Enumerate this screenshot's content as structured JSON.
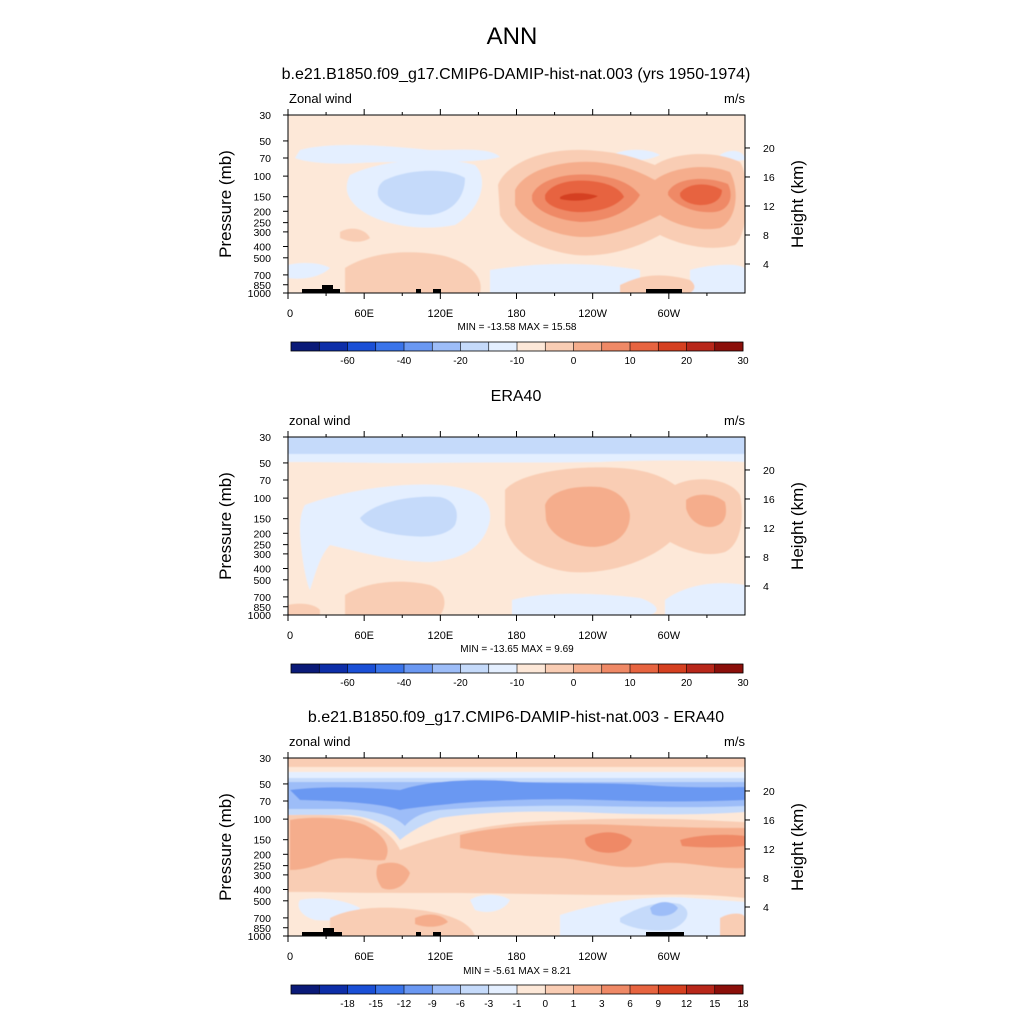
{
  "figure_title": "ANN",
  "colors": {
    "ramp_main": [
      "#0a1a78",
      "#0d2ea8",
      "#1a4fd6",
      "#3a74ea",
      "#6a98f2",
      "#9dbdf8",
      "#c5dafa",
      "#e4efff",
      "#fde8d8",
      "#f9cdb4",
      "#f5ad8c",
      "#ef8966",
      "#e76440",
      "#d54020",
      "#b8271a",
      "#8b0f0a"
    ],
    "land": "#000000"
  },
  "panels": [
    {
      "title": "b.e21.B1850.f09_g17.CMIP6-DAMIP-hist-nat.003 (yrs 1950-1974)",
      "left_label": "Zonal wind",
      "right_label": "m/s",
      "stats": "MIN = -13.58  MAX =  15.58",
      "colorbar_labels": [
        "-60",
        "-40",
        "-20",
        "-10",
        "0",
        "10",
        "20",
        "30"
      ]
    },
    {
      "title": "ERA40",
      "left_label": "zonal wind",
      "right_label": "m/s",
      "stats": "MIN = -13.65  MAX =   9.69",
      "colorbar_labels": [
        "-60",
        "-40",
        "-20",
        "-10",
        "0",
        "10",
        "20",
        "30"
      ]
    },
    {
      "title": "b.e21.B1850.f09_g17.CMIP6-DAMIP-hist-nat.003 - ERA40",
      "left_label": "zonal wind",
      "right_label": "m/s",
      "stats": "MIN =  -5.61  MAX =   8.21",
      "colorbar_labels": [
        "-18",
        "-15",
        "-12",
        "-9",
        "-6",
        "-3",
        "-1",
        "0",
        "1",
        "3",
        "6",
        "9",
        "12",
        "15",
        "18"
      ]
    }
  ],
  "chart_data": [
    {
      "type": "contour",
      "title": "b.e21.B1850.f09_g17.CMIP6-DAMIP-hist-nat.003 (yrs 1950-1974)",
      "variable": "Zonal wind",
      "units": "m/s",
      "xlabel": "",
      "ylabel": "Pressure (mb)",
      "ylabel_right": "Height (km)",
      "x_ticks": [
        "0",
        "60E",
        "120E",
        "180",
        "120W",
        "60W"
      ],
      "x_tick_lon": [
        0,
        60,
        120,
        180,
        240,
        300
      ],
      "xlim": [
        0,
        360
      ],
      "y_ticks": [
        30,
        50,
        70,
        100,
        150,
        200,
        250,
        300,
        400,
        500,
        700,
        850,
        1000
      ],
      "y_right_ticks": [
        4,
        8,
        12,
        16,
        20
      ],
      "ylim_mb": [
        1000,
        30
      ],
      "levels": [
        -70,
        -60,
        -50,
        -40,
        -30,
        -20,
        -15,
        -10,
        -5,
        0,
        5,
        10,
        15,
        20,
        25,
        30,
        35
      ],
      "min": -13.58,
      "max": 15.58,
      "features": [
        {
          "lon": 75,
          "p": 125,
          "value": -10,
          "label": "easterlies over Indian Ocean"
        },
        {
          "lon": 215,
          "p": 150,
          "value": 15,
          "label": "Pacific westerly maximum"
        },
        {
          "lon": 305,
          "p": 150,
          "value": 12,
          "label": "Atlantic westerly maximum"
        }
      ]
    },
    {
      "type": "contour",
      "title": "ERA40",
      "variable": "zonal wind",
      "units": "m/s",
      "xlabel": "",
      "ylabel": "Pressure (mb)",
      "ylabel_right": "Height (km)",
      "x_ticks": [
        "0",
        "60E",
        "120E",
        "180",
        "120W",
        "60W"
      ],
      "x_tick_lon": [
        0,
        60,
        120,
        180,
        240,
        300
      ],
      "xlim": [
        0,
        360
      ],
      "y_ticks": [
        30,
        50,
        70,
        100,
        150,
        200,
        250,
        300,
        400,
        500,
        700,
        850,
        1000
      ],
      "y_right_ticks": [
        4,
        8,
        12,
        16,
        20
      ],
      "ylim_mb": [
        1000,
        30
      ],
      "levels": [
        -70,
        -60,
        -50,
        -40,
        -30,
        -20,
        -15,
        -10,
        -5,
        0,
        5,
        10,
        15,
        20,
        25,
        30,
        35
      ],
      "min": -13.65,
      "max": 9.69,
      "features": [
        {
          "lon": 85,
          "p": 140,
          "value": -10,
          "label": "easterlies over Indian Ocean"
        },
        {
          "lon": 225,
          "p": 150,
          "value": 9,
          "label": "Pacific westerly maximum"
        },
        {
          "lon": 325,
          "p": 150,
          "value": 7,
          "label": "Atlantic westerly maximum"
        }
      ]
    },
    {
      "type": "contour",
      "title": "b.e21.B1850.f09_g17.CMIP6-DAMIP-hist-nat.003 - ERA40",
      "variable": "zonal wind",
      "units": "m/s",
      "xlabel": "",
      "ylabel": "Pressure (mb)",
      "ylabel_right": "Height (km)",
      "x_ticks": [
        "0",
        "60E",
        "120E",
        "180",
        "120W",
        "60W"
      ],
      "x_tick_lon": [
        0,
        60,
        120,
        180,
        240,
        300
      ],
      "xlim": [
        0,
        360
      ],
      "y_ticks": [
        30,
        50,
        70,
        100,
        150,
        200,
        250,
        300,
        400,
        500,
        700,
        850,
        1000
      ],
      "y_right_ticks": [
        4,
        8,
        12,
        16,
        20
      ],
      "ylim_mb": [
        1000,
        30
      ],
      "levels": [
        -21,
        -18,
        -15,
        -12,
        -9,
        -6,
        -3,
        -1,
        0,
        1,
        3,
        6,
        9,
        12,
        15,
        18,
        21
      ],
      "min": -5.61,
      "max": 8.21,
      "features": [
        {
          "lon": 180,
          "p": 60,
          "value": -4,
          "label": "negative band near 50-70 mb"
        },
        {
          "lon": 250,
          "p": 160,
          "value": 6,
          "label": "positive maximum upper troposphere"
        }
      ]
    }
  ]
}
